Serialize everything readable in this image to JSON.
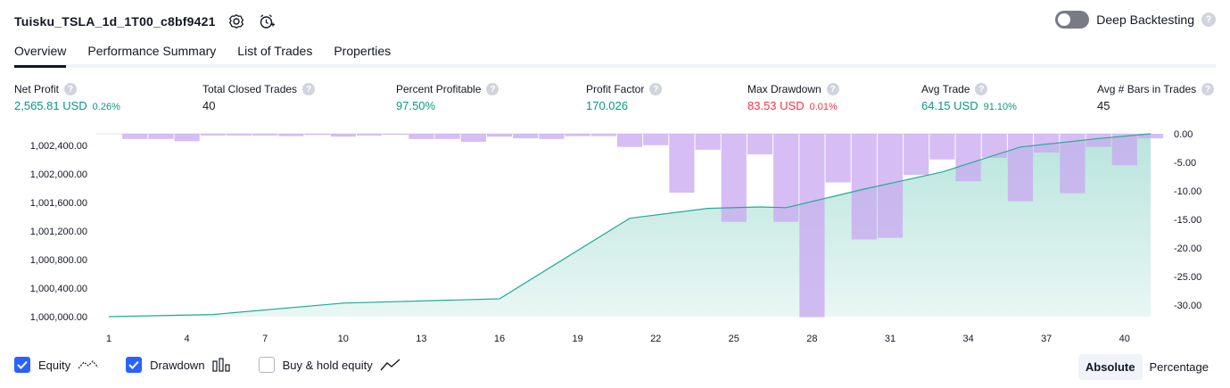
{
  "header": {
    "title": "Tuisku_TSLA_1d_1T00_c8bf9421",
    "deep_backtesting_label": "Deep Backtesting",
    "deep_backtesting_on": false,
    "help_glyph": "?"
  },
  "tabs": [
    {
      "label": "Overview",
      "active": true
    },
    {
      "label": "Performance Summary",
      "active": false
    },
    {
      "label": "List of Trades",
      "active": false
    },
    {
      "label": "Properties",
      "active": false
    }
  ],
  "metrics": [
    {
      "label": "Net Profit",
      "value": "2,565.81 USD",
      "pct": "0.26%",
      "color": "green"
    },
    {
      "label": "Total Closed Trades",
      "value": "40",
      "pct": "",
      "color": "default"
    },
    {
      "label": "Percent Profitable",
      "value": "97.50%",
      "pct": "",
      "color": "green"
    },
    {
      "label": "Profit Factor",
      "value": "170.026",
      "pct": "",
      "color": "green"
    },
    {
      "label": "Max Drawdown",
      "value": "83.53 USD",
      "pct": "0.01%",
      "color": "red"
    },
    {
      "label": "Avg Trade",
      "value": "64.15 USD",
      "pct": "91.10%",
      "color": "green"
    },
    {
      "label": "Avg # Bars in Trades",
      "value": "45",
      "pct": "",
      "color": "default"
    }
  ],
  "chart_data": {
    "type": "area",
    "left_axis": {
      "ticks": [
        "1,002,400.00",
        "1,002,000.00",
        "1,001,600.00",
        "1,001,200.00",
        "1,000,800.00",
        "1,000,400.00",
        "1,000,000.00"
      ],
      "range": [
        1000000,
        1002565.81
      ]
    },
    "right_axis": {
      "ticks": [
        "0.00",
        "-5.00",
        "-10.00",
        "-15.00",
        "-20.00",
        "-25.00",
        "-30.00"
      ],
      "range": [
        -32,
        0
      ]
    },
    "x_ticks": [
      "1",
      "4",
      "7",
      "10",
      "13",
      "16",
      "19",
      "22",
      "25",
      "28",
      "31",
      "34",
      "37",
      "40"
    ],
    "series": [
      {
        "name": "Equity",
        "x": [
          1,
          5,
          10,
          16,
          21,
          24,
          26,
          27,
          30,
          33,
          36,
          39,
          41
        ],
        "y": [
          1000000,
          1000030,
          1000190,
          1000250,
          1001380,
          1001520,
          1001540,
          1001530,
          1001790,
          1002030,
          1002380,
          1002500,
          1002565.81
        ]
      },
      {
        "name": "Drawdown",
        "x": [
          2,
          3,
          4,
          5,
          6,
          7,
          8,
          9,
          10,
          11,
          12,
          13,
          14,
          15,
          16,
          17,
          18,
          19,
          20,
          21,
          22,
          23,
          24,
          25,
          26,
          27,
          28,
          29,
          30,
          31,
          32,
          33,
          34,
          35,
          36,
          37,
          38,
          39,
          40,
          41
        ],
        "y": [
          -0.9,
          -0.9,
          -1.3,
          -0.3,
          -0.3,
          -0.3,
          -0.4,
          -0.2,
          -0.5,
          -0.3,
          -0.1,
          -0.9,
          -0.9,
          -1.4,
          -0.5,
          -0.8,
          -0.9,
          -0.4,
          -0.4,
          -2.3,
          -2.0,
          -10.3,
          -2.8,
          -15.4,
          -3.6,
          -15.4,
          -32.1,
          -8.5,
          -18.5,
          -18.2,
          -7.2,
          -4.5,
          -8.3,
          -4.2,
          -11.8,
          -3.3,
          -10.4,
          -2.3,
          -5.5,
          -0.8
        ]
      }
    ],
    "colors": {
      "equity_line": "#22ab94",
      "equity_fill": "#22ab94",
      "drawdown_bar": "#c8a7f0",
      "grid_line": "#e0e3eb"
    },
    "grid": false
  },
  "legend": {
    "items": [
      {
        "label": "Equity",
        "checked": true,
        "icon": "equity-line-icon"
      },
      {
        "label": "Drawdown",
        "checked": true,
        "icon": "drawdown-bars-icon"
      },
      {
        "label": "Buy & hold equity",
        "checked": false,
        "icon": "buy-hold-line-icon"
      }
    ]
  },
  "mode": {
    "options": [
      {
        "label": "Absolute",
        "active": true
      },
      {
        "label": "Percentage",
        "active": false
      }
    ]
  }
}
